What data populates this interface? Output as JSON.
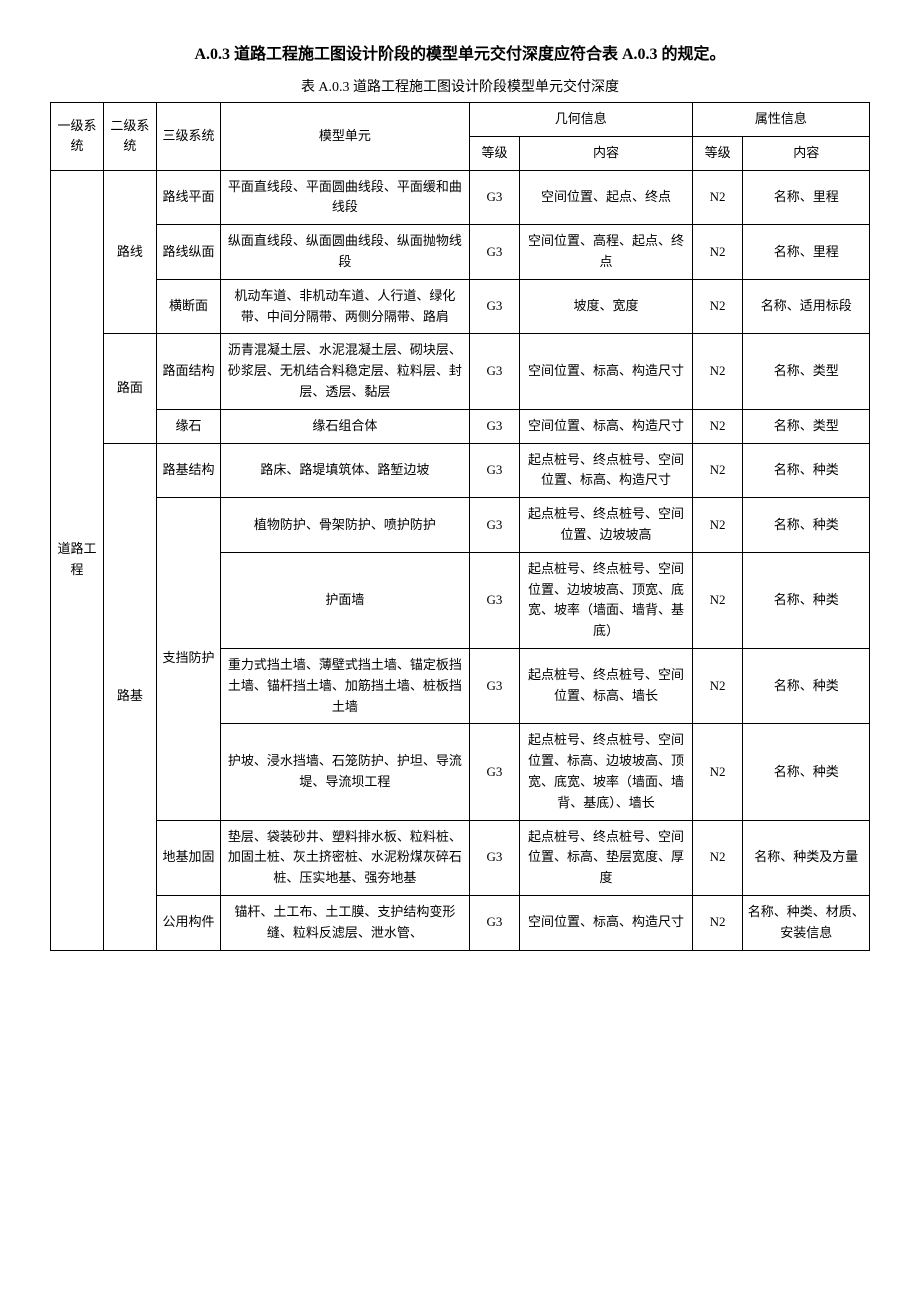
{
  "title": "A.0.3 道路工程施工图设计阶段的模型单元交付深度应符合表 A.0.3 的规定。",
  "caption": "表 A.0.3 道路工程施工图设计阶段模型单元交付深度",
  "headers": {
    "l1": "一级系统",
    "l2": "二级系统",
    "l3": "三级系统",
    "unit": "模型单元",
    "geo": "几何信息",
    "attr": "属性信息",
    "level": "等级",
    "content": "内容"
  },
  "level1": "道路工程",
  "level2": {
    "route": "路线",
    "surface": "路面",
    "subgrade": "路基"
  },
  "level3": {
    "plan": "路线平面",
    "profile": "路线纵面",
    "cross": "横断面",
    "pavement": "路面结构",
    "curb": "缘石",
    "subStruct": "路基结构",
    "retain": "支挡防护",
    "foundation": "地基加固",
    "common": "公用构件"
  },
  "rows": [
    {
      "unit": "平面直线段、平面圆曲线段、平面缓和曲线段",
      "gl": "G3",
      "gc": "空间位置、起点、终点",
      "al": "N2",
      "ac": "名称、里程"
    },
    {
      "unit": "纵面直线段、纵面圆曲线段、纵面抛物线段",
      "gl": "G3",
      "gc": "空间位置、高程、起点、终点",
      "al": "N2",
      "ac": "名称、里程"
    },
    {
      "unit": "机动车道、非机动车道、人行道、绿化带、中间分隔带、两侧分隔带、路肩",
      "gl": "G3",
      "gc": "坡度、宽度",
      "al": "N2",
      "ac": "名称、适用标段"
    },
    {
      "unit": "沥青混凝土层、水泥混凝土层、砌块层、砂浆层、无机结合料稳定层、粒料层、封层、透层、黏层",
      "gl": "G3",
      "gc": "空间位置、标高、构造尺寸",
      "al": "N2",
      "ac": "名称、类型"
    },
    {
      "unit": "缘石组合体",
      "gl": "G3",
      "gc": "空间位置、标高、构造尺寸",
      "al": "N2",
      "ac": "名称、类型"
    },
    {
      "unit": "路床、路堤填筑体、路堑边坡",
      "gl": "G3",
      "gc": "起点桩号、终点桩号、空间位置、标高、构造尺寸",
      "al": "N2",
      "ac": "名称、种类"
    },
    {
      "unit": "植物防护、骨架防护、喷护防护",
      "gl": "G3",
      "gc": "起点桩号、终点桩号、空间位置、边坡坡高",
      "al": "N2",
      "ac": "名称、种类"
    },
    {
      "unit": "护面墙",
      "gl": "G3",
      "gc": "起点桩号、终点桩号、空间位置、边坡坡高、顶宽、底宽、坡率（墙面、墙背、基底）",
      "al": "N2",
      "ac": "名称、种类"
    },
    {
      "unit": "重力式挡土墙、薄壁式挡土墙、锚定板挡土墙、锚杆挡土墙、加筋挡土墙、桩板挡土墙",
      "gl": "G3",
      "gc": "起点桩号、终点桩号、空间位置、标高、墙长",
      "al": "N2",
      "ac": "名称、种类"
    },
    {
      "unit": "护坡、浸水挡墙、石笼防护、护坦、导流堤、导流坝工程",
      "gl": "G3",
      "gc": "起点桩号、终点桩号、空间位置、标高、边坡坡高、顶宽、底宽、坡率（墙面、墙背、基底）、墙长",
      "al": "N2",
      "ac": "名称、种类"
    },
    {
      "unit": "垫层、袋装砂井、塑料排水板、粒料桩、加固土桩、灰土挤密桩、水泥粉煤灰碎石桩、压实地基、强夯地基",
      "gl": "G3",
      "gc": "起点桩号、终点桩号、空间位置、标高、垫层宽度、厚度",
      "al": "N2",
      "ac": "名称、种类及方量"
    },
    {
      "unit": "锚杆、土工布、土工膜、支护结构变形缝、粒料反滤层、泄水管、",
      "gl": "G3",
      "gc": "空间位置、标高、构造尺寸",
      "al": "N2",
      "ac": "名称、种类、材质、安装信息"
    }
  ]
}
